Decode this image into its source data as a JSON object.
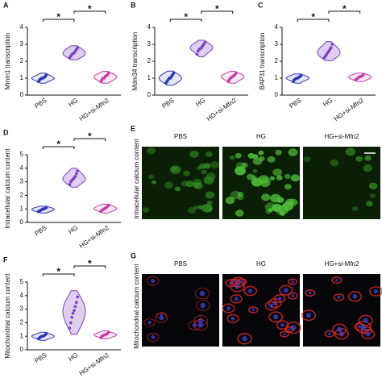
{
  "chart_data": [
    {
      "type": "violin",
      "panel_label": "A",
      "ylabel": "Mmm1 transcription",
      "categories": [
        "PBS",
        "HG",
        "HG+si-Mfn2"
      ],
      "colors": [
        "#2a35b0",
        "#7b3fc0",
        "#c23fa6"
      ],
      "values": [
        [
          0.8,
          0.9,
          0.95,
          1.0,
          1.0,
          1.05,
          1.1,
          1.2
        ],
        [
          2.2,
          2.3,
          2.4,
          2.45,
          2.5,
          2.6,
          2.7,
          2.8
        ],
        [
          0.8,
          0.9,
          1.0,
          1.0,
          1.1,
          1.15,
          1.2,
          1.3
        ]
      ],
      "ylim": [
        0,
        4
      ],
      "yticks": [
        0,
        1,
        2,
        3,
        4
      ],
      "significance": [
        "*",
        "*"
      ]
    },
    {
      "type": "violin",
      "panel_label": "B",
      "ylabel": "Mdm34 transcription",
      "categories": [
        "PBS",
        "HG",
        "HG+si-Mfn2"
      ],
      "colors": [
        "#2a35b0",
        "#7b3fc0",
        "#c23fa6"
      ],
      "values": [
        [
          0.7,
          0.8,
          0.9,
          1.0,
          1.0,
          1.1,
          1.2,
          1.3
        ],
        [
          2.4,
          2.6,
          2.7,
          2.75,
          2.8,
          2.9,
          3.0,
          3.1
        ],
        [
          0.8,
          0.9,
          1.0,
          1.05,
          1.1,
          1.15,
          1.2,
          1.3
        ]
      ],
      "ylim": [
        0,
        4
      ],
      "yticks": [
        0,
        1,
        2,
        3,
        4
      ],
      "significance": [
        "*",
        "*"
      ]
    },
    {
      "type": "violin",
      "panel_label": "C",
      "ylabel": "BAP31 transcription",
      "categories": [
        "PBS",
        "HG",
        "HG+si-Mfn2"
      ],
      "colors": [
        "#2a35b0",
        "#7b3fc0",
        "#c23fa6"
      ],
      "values": [
        [
          0.8,
          0.9,
          0.95,
          1.0,
          1.0,
          1.05,
          1.1,
          1.15
        ],
        [
          2.2,
          2.3,
          2.4,
          2.5,
          2.6,
          2.7,
          2.8,
          3.0
        ],
        [
          0.9,
          0.95,
          1.0,
          1.05,
          1.1,
          1.1,
          1.15,
          1.2
        ]
      ],
      "ylim": [
        0,
        4
      ],
      "yticks": [
        0,
        1,
        2,
        3,
        4
      ],
      "significance": [
        "*",
        "*"
      ]
    },
    {
      "type": "violin",
      "panel_label": "D",
      "ylabel": "Intracellular calcium content",
      "categories": [
        "PBS",
        "HG",
        "HG+si-Mfn2"
      ],
      "colors": [
        "#2a35b0",
        "#7b3fc0",
        "#c23fa6"
      ],
      "values": [
        [
          0.8,
          0.85,
          0.9,
          0.95,
          1.0,
          1.0,
          1.05,
          1.1
        ],
        [
          2.8,
          3.0,
          3.1,
          3.2,
          3.3,
          3.4,
          3.6,
          3.8
        ],
        [
          0.8,
          0.9,
          0.95,
          1.0,
          1.05,
          1.1,
          1.2,
          1.25
        ]
      ],
      "ylim": [
        0,
        5
      ],
      "yticks": [
        0,
        1,
        2,
        3,
        4,
        5
      ],
      "significance": [
        "*",
        "*"
      ]
    },
    {
      "type": "violin",
      "panel_label": "F",
      "ylabel": "Mitochondrial calcium content",
      "categories": [
        "PBS",
        "HG",
        "HG+si-Mfn2"
      ],
      "colors": [
        "#2a35b0",
        "#7b3fc0",
        "#c23fa6"
      ],
      "values": [
        [
          0.8,
          0.9,
          0.95,
          1.0,
          1.0,
          1.05,
          1.1,
          1.2
        ],
        [
          1.6,
          2.0,
          2.4,
          2.7,
          2.9,
          3.2,
          3.5,
          3.9
        ],
        [
          0.9,
          1.0,
          1.05,
          1.1,
          1.1,
          1.15,
          1.2,
          1.3
        ]
      ],
      "ylim": [
        0,
        5
      ],
      "yticks": [
        0,
        1,
        2,
        3,
        4,
        5
      ],
      "significance": [
        "*",
        "*"
      ]
    }
  ],
  "image_panels": [
    {
      "panel_label": "E",
      "ylabel": "Intracellular calcium content",
      "columns": [
        "PBS",
        "HG",
        "HG+si-Mfn2"
      ],
      "style": "green"
    },
    {
      "panel_label": "G",
      "ylabel": "Mitochondrial calcium content",
      "columns": [
        "PBS",
        "HG",
        "HG+si-Mfn2"
      ],
      "style": "redblue"
    }
  ]
}
